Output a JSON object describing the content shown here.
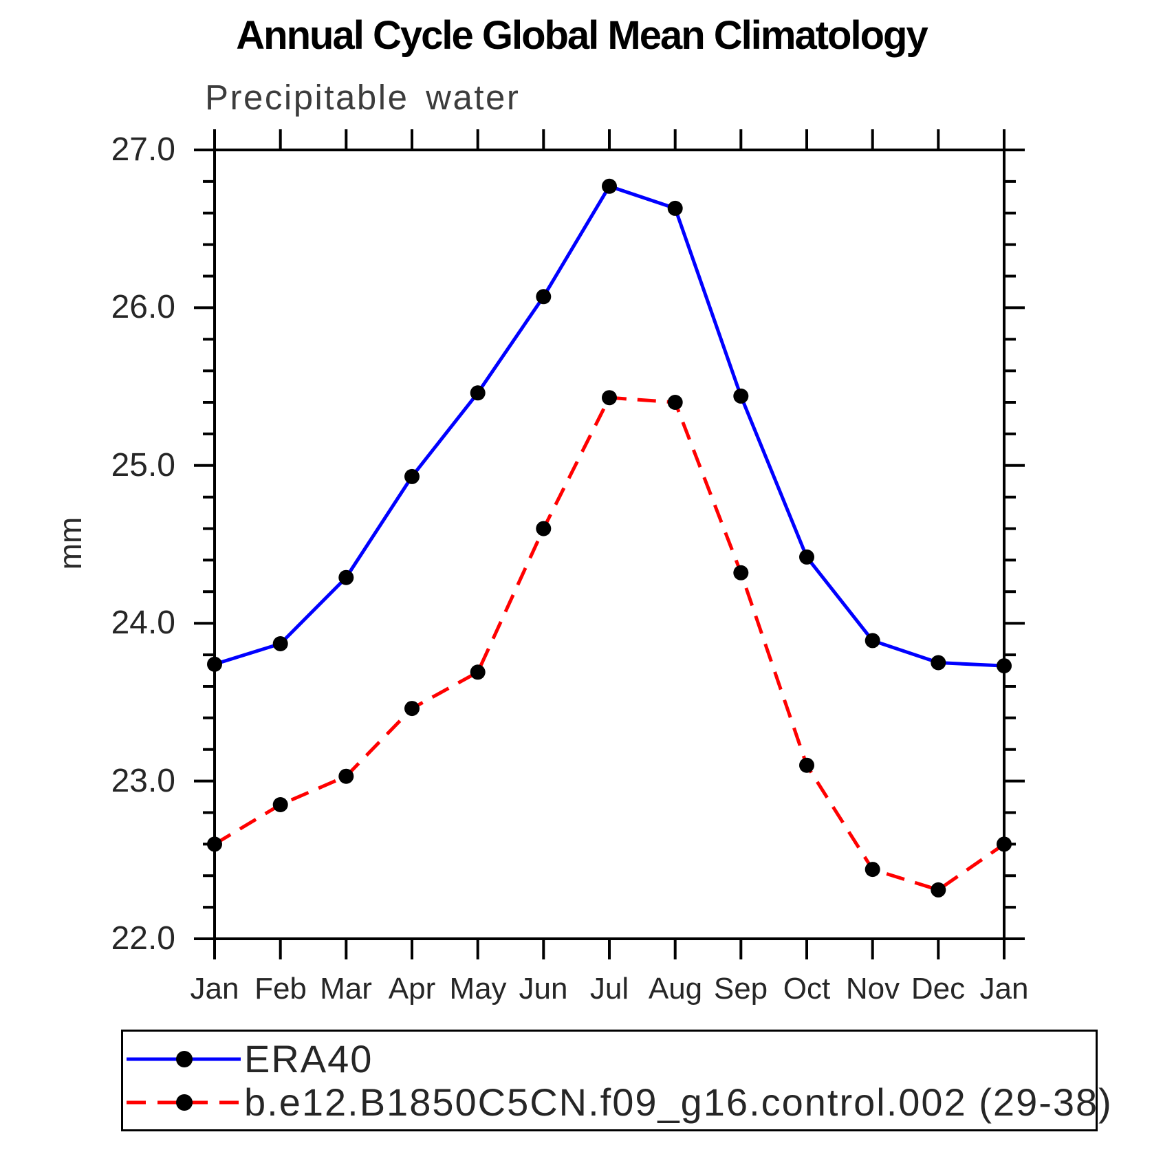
{
  "page": {
    "title": "Annual Cycle Global Mean Climatology",
    "subtitle": "Precipitable water",
    "y_axis_title": "mm"
  },
  "chart_data": {
    "type": "line",
    "title": "Annual Cycle Global Mean Climatology",
    "subtitle": "Precipitable water",
    "ylabel": "mm",
    "xlabel": "",
    "x_categories": [
      "Jan",
      "Feb",
      "Mar",
      "Apr",
      "May",
      "Jun",
      "Jul",
      "Aug",
      "Sep",
      "Oct",
      "Nov",
      "Dec",
      "Jan"
    ],
    "ylim": [
      22.0,
      27.0
    ],
    "ytick_interval": 1.0,
    "yminor_interval": 0.2,
    "ytick_labels": [
      "27.0",
      "26.0",
      "25.0",
      "24.0",
      "23.0",
      "22.0"
    ],
    "grid": false,
    "legend_position": "bottom-box",
    "axis_color": "#000000",
    "marker": "filled-circle",
    "marker_color": "#000000",
    "series": [
      {
        "name": "ERA40",
        "color": "#0000ff",
        "style": "solid",
        "values": [
          23.74,
          23.87,
          24.29,
          24.93,
          25.46,
          26.07,
          26.77,
          26.63,
          25.44,
          24.42,
          23.89,
          23.75,
          23.73
        ]
      },
      {
        "name": "b.e12.B1850C5CN.f09_g16.control.002 (29-38)",
        "color": "#ff0000",
        "style": "dashed",
        "values": [
          22.6,
          22.85,
          23.03,
          23.46,
          23.69,
          24.6,
          25.43,
          25.4,
          24.32,
          23.1,
          22.44,
          22.31,
          22.6
        ]
      }
    ]
  }
}
